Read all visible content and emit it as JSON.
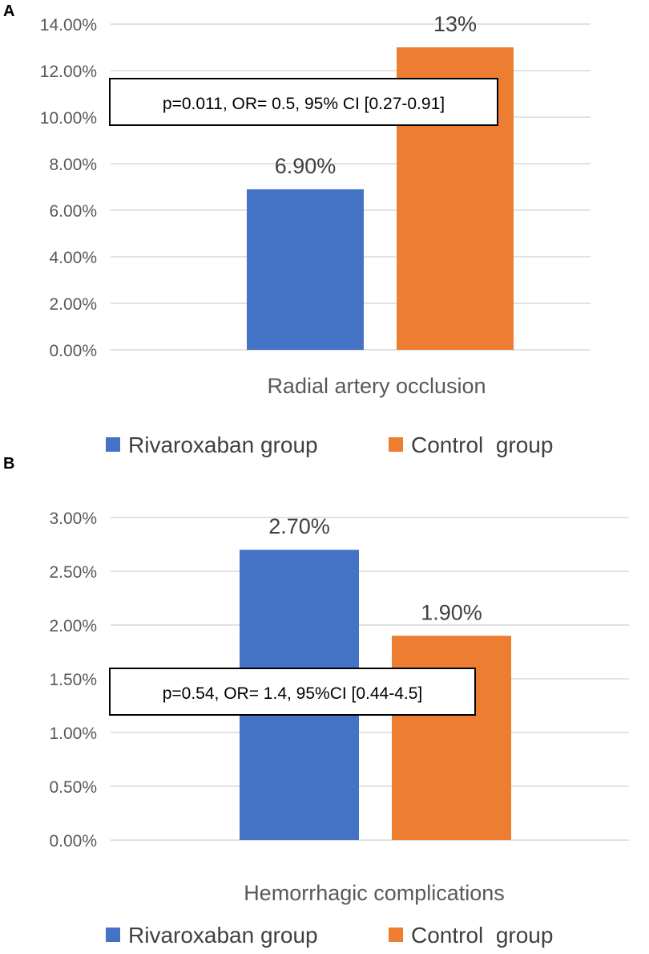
{
  "colors": {
    "rivaroxaban": "#4472c4",
    "control": "#ed7d31",
    "grid": "#d9d9d9",
    "text": "#595959"
  },
  "chart_data": [
    {
      "panel": "A",
      "type": "bar",
      "category": "Radial artery occlusion",
      "series": [
        {
          "name": "Rivaroxaban group",
          "value": 6.9,
          "label": "6.90%"
        },
        {
          "name": "Control  group",
          "value": 13.0,
          "label": "13%"
        }
      ],
      "ylim": [
        0,
        14
      ],
      "yticks": [
        "0.00%",
        "2.00%",
        "4.00%",
        "6.00%",
        "8.00%",
        "10.00%",
        "12.00%",
        "14.00%"
      ],
      "annotation": "p=0.011, OR= 0.5, 95% CI [0.27-0.91]",
      "legend": [
        "Rivaroxaban group",
        "Control  group"
      ],
      "legend_position": "bottom"
    },
    {
      "panel": "B",
      "type": "bar",
      "category": "Hemorrhagic complications",
      "series": [
        {
          "name": "Rivaroxaban group",
          "value": 2.7,
          "label": "2.70%"
        },
        {
          "name": "Control  group",
          "value": 1.9,
          "label": "1.90%"
        }
      ],
      "ylim": [
        0,
        3
      ],
      "yticks": [
        "0.00%",
        "0.50%",
        "1.00%",
        "1.50%",
        "2.00%",
        "2.50%",
        "3.00%"
      ],
      "annotation": "p=0.54, OR= 1.4, 95%CI [0.44-4.5]",
      "legend": [
        "Rivaroxaban group",
        "Control  group"
      ],
      "legend_position": "bottom"
    }
  ]
}
